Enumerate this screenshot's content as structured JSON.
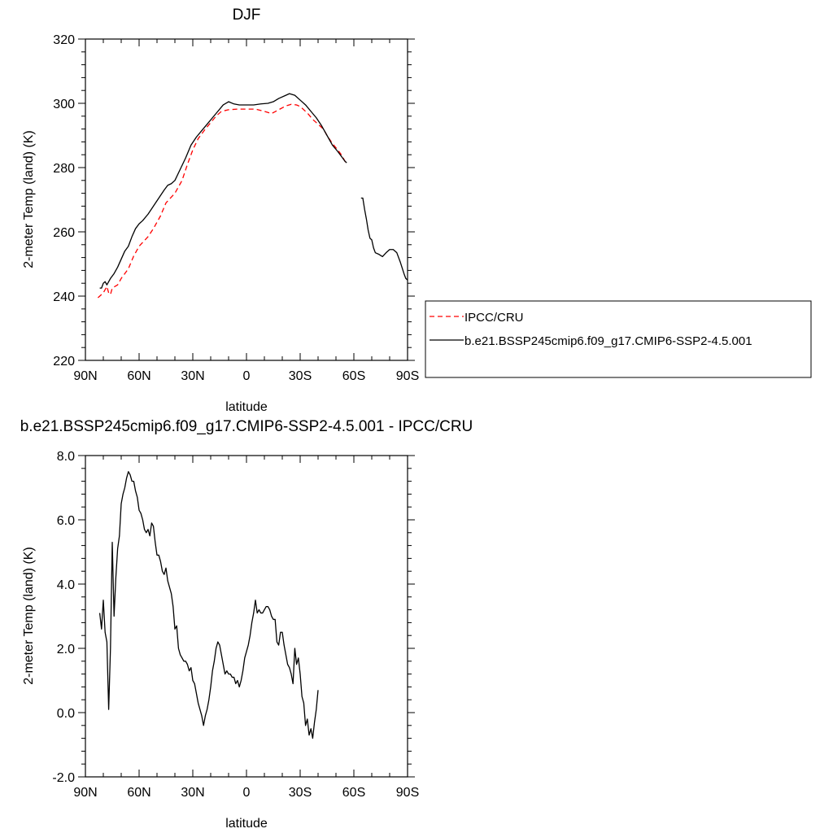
{
  "chart_data": [
    {
      "type": "line",
      "title": "DJF",
      "xlabel": "latitude",
      "ylabel": "2-meter Temp (land) (K)",
      "xlim": [
        -90,
        90
      ],
      "ylim": [
        220,
        320
      ],
      "x_ticks": [
        -90,
        -60,
        -30,
        0,
        30,
        60,
        90
      ],
      "x_tick_labels": [
        "90N",
        "60N",
        "30N",
        "0",
        "30S",
        "60S",
        "90S"
      ],
      "y_ticks": [
        220,
        240,
        260,
        280,
        300,
        320
      ],
      "y_tick_labels": [
        "220",
        "240",
        "260",
        "280",
        "300",
        "320"
      ],
      "legend_position": "right",
      "series": [
        {
          "name": "IPCC/CRU",
          "color": "#ff0000",
          "dash": "dashed",
          "segments": [
            [
              [
                -83,
                239.5
              ],
              [
                -80,
                241
              ],
              [
                -78,
                243
              ],
              [
                -77,
                241
              ],
              [
                -76,
                240.5
              ],
              [
                -75,
                242.5
              ],
              [
                -72,
                243.5
              ],
              [
                -70,
                245.5
              ],
              [
                -66,
                248.5
              ],
              [
                -63,
                252.5
              ],
              [
                -60,
                255.5
              ],
              [
                -55,
                258.5
              ],
              [
                -52,
                261
              ],
              [
                -48,
                265
              ],
              [
                -45,
                269
              ],
              [
                -40,
                272
              ],
              [
                -36,
                276
              ],
              [
                -33,
                281
              ],
              [
                -30,
                285.5
              ],
              [
                -27,
                289
              ],
              [
                -23,
                292
              ],
              [
                -20,
                294
              ],
              [
                -17,
                296
              ],
              [
                -14,
                297.5
              ],
              [
                -10,
                298
              ],
              [
                -5,
                298.2
              ],
              [
                0,
                298.2
              ],
              [
                5,
                298.2
              ],
              [
                10,
                297.5
              ],
              [
                14,
                296.8
              ],
              [
                18,
                298
              ],
              [
                22,
                299.2
              ],
              [
                25,
                299.7
              ],
              [
                28,
                299.5
              ],
              [
                30,
                299
              ],
              [
                34,
                297
              ],
              [
                37,
                295
              ],
              [
                40,
                293.5
              ],
              [
                43,
                292
              ],
              [
                45,
                290
              ],
              [
                48,
                287.5
              ],
              [
                51,
                285.5
              ],
              [
                53,
                284
              ],
              [
                55,
                282
              ],
              [
                56,
                281
              ]
            ]
          ]
        },
        {
          "name": "b.e21.BSSP245cmip6.f09_g17.CMIP6-SSP2-4.5.001",
          "color": "#000000",
          "dash": "solid",
          "segments": [
            [
              [
                -82,
                242.5
              ],
              [
                -81,
                242.5
              ],
              [
                -80,
                244
              ],
              [
                -79,
                244.5
              ],
              [
                -78,
                243.5
              ],
              [
                -76,
                245.5
              ],
              [
                -74,
                247
              ],
              [
                -72,
                249
              ],
              [
                -70,
                251.5
              ],
              [
                -68,
                254
              ],
              [
                -66,
                255.5
              ],
              [
                -64,
                258.5
              ],
              [
                -62,
                261
              ],
              [
                -60,
                262.5
              ],
              [
                -58,
                263.5
              ],
              [
                -55,
                265.5
              ],
              [
                -52,
                268
              ],
              [
                -49,
                270.5
              ],
              [
                -46,
                273
              ],
              [
                -44,
                274.5
              ],
              [
                -42,
                275
              ],
              [
                -40,
                276
              ],
              [
                -37,
                279.5
              ],
              [
                -34,
                283
              ],
              [
                -31,
                287
              ],
              [
                -28,
                289.5
              ],
              [
                -25,
                291.5
              ],
              [
                -22,
                293.5
              ],
              [
                -19,
                295.5
              ],
              [
                -16,
                297.5
              ],
              [
                -13,
                299.5
              ],
              [
                -10,
                300.5
              ],
              [
                -7,
                299.8
              ],
              [
                -4,
                299.5
              ],
              [
                0,
                299.5
              ],
              [
                4,
                299.5
              ],
              [
                8,
                299.8
              ],
              [
                12,
                300
              ],
              [
                15,
                300.5
              ],
              [
                18,
                301.5
              ],
              [
                22,
                302.5
              ],
              [
                24,
                303
              ],
              [
                27,
                302.5
              ],
              [
                30,
                301
              ],
              [
                33,
                299.5
              ],
              [
                36,
                297.5
              ],
              [
                39,
                295.5
              ],
              [
                42,
                293
              ],
              [
                45,
                290
              ],
              [
                48,
                287
              ],
              [
                51,
                285
              ],
              [
                53,
                283.5
              ],
              [
                55,
                282
              ],
              [
                56,
                281.5
              ]
            ],
            [
              [
                64,
                270.5
              ],
              [
                65,
                270.5
              ],
              [
                66,
                267
              ],
              [
                67,
                264
              ],
              [
                68,
                260.5
              ],
              [
                69,
                258
              ],
              [
                70,
                257.5
              ],
              [
                71,
                255
              ],
              [
                72,
                253.5
              ],
              [
                74,
                253
              ],
              [
                76,
                252.3
              ],
              [
                78,
                253.5
              ],
              [
                80,
                254.5
              ],
              [
                82,
                254.5
              ],
              [
                84,
                253.5
              ],
              [
                86,
                250.5
              ],
              [
                88,
                247
              ],
              [
                89,
                245.5
              ],
              [
                90,
                245
              ]
            ]
          ]
        }
      ]
    },
    {
      "type": "line",
      "title": "b.e21.BSSP245cmip6.f09_g17.CMIP6-SSP2-4.5.001 - IPCC/CRU",
      "xlabel": "latitude",
      "ylabel": "2-meter Temp (land) (K)",
      "xlim": [
        -90,
        90
      ],
      "ylim": [
        -2,
        8
      ],
      "x_ticks": [
        -90,
        -60,
        -30,
        0,
        30,
        60,
        90
      ],
      "x_tick_labels": [
        "90N",
        "60N",
        "30N",
        "0",
        "30S",
        "60S",
        "90S"
      ],
      "y_ticks": [
        -2,
        0,
        2,
        4,
        6,
        8
      ],
      "y_tick_labels": [
        "-2.0",
        "0.0",
        "2.0",
        "4.0",
        "6.0",
        "8.0"
      ],
      "series": [
        {
          "color": "#000000",
          "dash": "solid",
          "segments": [
            [
              [
                -82,
                3.1
              ],
              [
                -81,
                2.6
              ],
              [
                -80,
                3.5
              ],
              [
                -79,
                2.5
              ],
              [
                -78,
                2.2
              ],
              [
                -77,
                0.1
              ],
              [
                -76,
                2.0
              ],
              [
                -75,
                5.3
              ],
              [
                -74,
                3.0
              ],
              [
                -73,
                4.2
              ],
              [
                -72,
                5.1
              ],
              [
                -71,
                5.5
              ],
              [
                -70,
                6.5
              ],
              [
                -69,
                6.8
              ],
              [
                -68,
                7.0
              ],
              [
                -67,
                7.3
              ],
              [
                -66,
                7.5
              ],
              [
                -65,
                7.4
              ],
              [
                -64,
                7.2
              ],
              [
                -63,
                7.2
              ],
              [
                -62,
                6.9
              ],
              [
                -61,
                6.7
              ],
              [
                -60,
                6.3
              ],
              [
                -59,
                6.2
              ],
              [
                -58,
                6.0
              ],
              [
                -57,
                5.7
              ],
              [
                -56,
                5.6
              ],
              [
                -55,
                5.7
              ],
              [
                -54,
                5.5
              ],
              [
                -53,
                5.9
              ],
              [
                -52,
                5.8
              ],
              [
                -51,
                5.3
              ],
              [
                -50,
                4.9
              ],
              [
                -49,
                4.9
              ],
              [
                -48,
                4.7
              ],
              [
                -47,
                4.4
              ],
              [
                -46,
                4.3
              ],
              [
                -45,
                4.5
              ],
              [
                -44,
                4.1
              ],
              [
                -43,
                3.9
              ],
              [
                -42,
                3.7
              ],
              [
                -41,
                3.3
              ],
              [
                -40,
                2.6
              ],
              [
                -39,
                2.7
              ],
              [
                -38,
                2.0
              ],
              [
                -37,
                1.8
              ],
              [
                -36,
                1.7
              ],
              [
                -35,
                1.6
              ],
              [
                -34,
                1.6
              ],
              [
                -33,
                1.5
              ],
              [
                -32,
                1.3
              ],
              [
                -31,
                1.4
              ],
              [
                -30,
                1.0
              ],
              [
                -29,
                0.9
              ],
              [
                -28,
                0.6
              ],
              [
                -27,
                0.3
              ],
              [
                -26,
                0.1
              ],
              [
                -25,
                -0.1
              ],
              [
                -24,
                -0.4
              ],
              [
                -23,
                -0.1
              ],
              [
                -22,
                0.1
              ],
              [
                -21,
                0.4
              ],
              [
                -20,
                0.8
              ],
              [
                -19,
                1.3
              ],
              [
                -18,
                1.6
              ],
              [
                -17,
                2.0
              ],
              [
                -16,
                2.2
              ],
              [
                -15,
                2.1
              ],
              [
                -14,
                1.8
              ],
              [
                -13,
                1.5
              ],
              [
                -12,
                1.2
              ],
              [
                -11,
                1.3
              ],
              [
                -10,
                1.2
              ],
              [
                -9,
                1.2
              ],
              [
                -8,
                1.1
              ],
              [
                -7,
                1.1
              ],
              [
                -6,
                0.9
              ],
              [
                -5,
                1.0
              ],
              [
                -4,
                0.8
              ],
              [
                -3,
                1.0
              ],
              [
                -2,
                1.3
              ],
              [
                -1,
                1.7
              ],
              [
                0,
                1.9
              ],
              [
                1,
                2.1
              ],
              [
                2,
                2.4
              ],
              [
                3,
                2.8
              ],
              [
                4,
                3.1
              ],
              [
                5,
                3.5
              ],
              [
                6,
                3.1
              ],
              [
                7,
                3.2
              ],
              [
                8,
                3.1
              ],
              [
                9,
                3.1
              ],
              [
                10,
                3.2
              ],
              [
                11,
                3.3
              ],
              [
                12,
                3.3
              ],
              [
                13,
                3.2
              ],
              [
                14,
                3.0
              ],
              [
                15,
                2.9
              ],
              [
                16,
                2.9
              ],
              [
                17,
                2.2
              ],
              [
                18,
                2.1
              ],
              [
                19,
                2.5
              ],
              [
                20,
                2.5
              ],
              [
                21,
                2.1
              ],
              [
                22,
                1.8
              ],
              [
                23,
                1.5
              ],
              [
                24,
                1.4
              ],
              [
                25,
                1.2
              ],
              [
                26,
                0.9
              ],
              [
                27,
                2.0
              ],
              [
                28,
                1.5
              ],
              [
                29,
                1.7
              ],
              [
                30,
                1.2
              ],
              [
                31,
                0.5
              ],
              [
                32,
                0.3
              ],
              [
                33,
                -0.4
              ],
              [
                34,
                -0.2
              ],
              [
                35,
                -0.7
              ],
              [
                36,
                -0.5
              ],
              [
                37,
                -0.8
              ],
              [
                38,
                -0.3
              ],
              [
                39,
                0.1
              ],
              [
                40,
                0.7
              ]
            ]
          ]
        }
      ]
    }
  ]
}
